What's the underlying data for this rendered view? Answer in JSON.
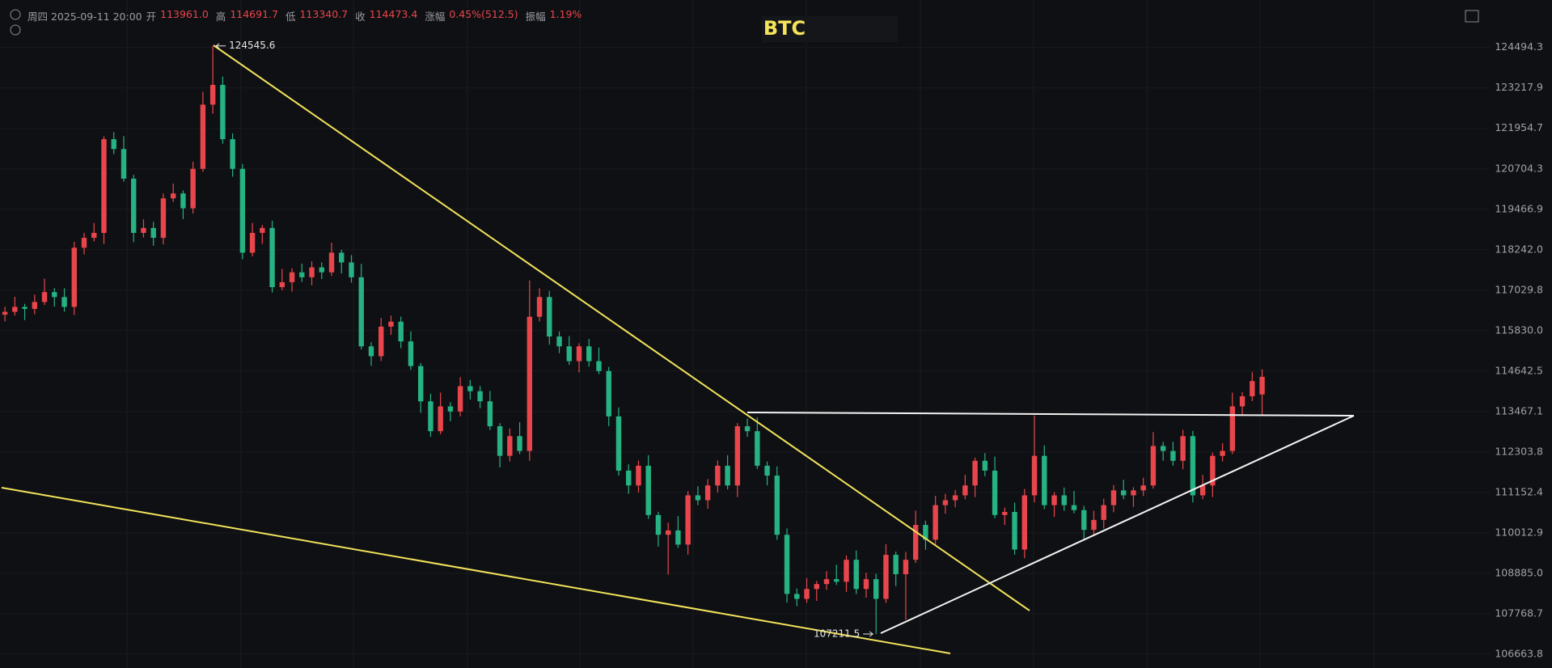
{
  "header": {
    "datetime": "周四 2025-09-11 20:00",
    "items": [
      {
        "label": "开",
        "value": "113961.0"
      },
      {
        "label": "高",
        "value": "114691.7"
      },
      {
        "label": "低",
        "value": "113340.7"
      },
      {
        "label": "收",
        "value": "114473.4"
      },
      {
        "label": "涨幅",
        "value": "0.45%(512.5)"
      },
      {
        "label": "振幅",
        "value": "1.19%"
      }
    ]
  },
  "chart_data": {
    "type": "candlestick",
    "title": "BTC",
    "log_scale": true,
    "grid": true,
    "up_color": "#e8464c",
    "down_color": "#26b283",
    "ylim": [
      106288,
      126010
    ],
    "yticks": [
      124494.3,
      123217.9,
      121954.7,
      120704.3,
      119466.9,
      {
        "value": 118242.0,
        "label": "118242.0"
      },
      117029.8,
      {
        "value": 115830.0,
        "label": "115830.0"
      },
      114642.5,
      113467.1,
      112303.8,
      111152.4,
      110012.9,
      {
        "value": 108885.0,
        "label": "108885.0"
      },
      107768.7,
      106663.8
    ],
    "open": [
      116300,
      116385,
      116532,
      116473,
      116678,
      116971,
      116825,
      116532,
      118302,
      118601,
      118750,
      121620,
      121315,
      120402,
      118750,
      118900,
      118601,
      119799,
      119950,
      119497,
      120704,
      122694,
      123314,
      121620,
      120704,
      118153,
      118750,
      118900,
      117119,
      117267,
      117563,
      117415,
      117711,
      117563,
      118153,
      117859,
      117415,
      115366,
      115076,
      115947,
      116094,
      115511,
      114788,
      113761,
      112899,
      113614,
      113467,
      114202,
      114055,
      113761,
      113041,
      112192,
      112757,
      112332,
      116240,
      116825,
      115656,
      115366,
      114932,
      115366,
      114932,
      114643,
      113325,
      111770,
      111349,
      111910,
      110513,
      109958,
      110080,
      109683,
      111069,
      110930,
      111349,
      111910,
      111349,
      113041,
      112899,
      111910,
      111629,
      109958,
      108313,
      108177,
      108450,
      108586,
      108722,
      108650,
      109260,
      108450,
      108722,
      108177,
      109398,
      108858,
      109260,
      110235,
      109820,
      110791,
      110930,
      111069,
      111349,
      112051,
      111770,
      110513,
      110600,
      109545,
      111069,
      112192,
      110791,
      111069,
      110791,
      110652,
      110096,
      110374,
      110791,
      111209,
      111069,
      111209,
      111349,
      112474,
      112332,
      112051,
      112757,
      111069,
      111349,
      112192,
      112332,
      113614,
      113908,
      113961.0
    ],
    "high": [
      116535,
      116832,
      116622,
      116898,
      117371,
      117091,
      117085,
      118482,
      118751,
      119050,
      121710,
      121840,
      121715,
      120522,
      119160,
      119080,
      119949,
      120250,
      120040,
      120924,
      123094,
      124545.6,
      123574,
      121800,
      120854,
      119050,
      118990,
      119120,
      117667,
      117683,
      117823,
      117891,
      117861,
      118453,
      118243,
      118079,
      117815,
      115486,
      116207,
      116274,
      116244,
      115811,
      114878,
      113981,
      114014,
      113734,
      114462,
      114382,
      114205,
      114061,
      113131,
      112977,
      113157,
      117320,
      117085,
      117005,
      115806,
      115666,
      115456,
      115586,
      115332,
      114763,
      113585,
      111950,
      112060,
      112210,
      110603,
      110300,
      110480,
      111189,
      111329,
      111529,
      112060,
      112210,
      113131,
      113261,
      113299,
      112030,
      111889,
      110138,
      108463,
      108750,
      108676,
      108942,
      109122,
      109380,
      109520,
      108902,
      108872,
      109698,
      109488,
      109480,
      110635,
      110355,
      111051,
      111110,
      111219,
      111649,
      112141,
      112271,
      112170,
      110720,
      110860,
      111249,
      113350,
      112492,
      111159,
      111289,
      111191,
      110772,
      110634,
      110971,
      111359,
      111509,
      111299,
      111569,
      112874,
      112594,
      112592,
      112937,
      112907,
      111649,
      112282,
      112552,
      114014,
      114028,
      114609,
      114691.7
    ],
    "low": [
      116100,
      116275,
      116143,
      116313,
      116588,
      116545,
      116392,
      116292,
      118102,
      118491,
      118420,
      121155,
      120312,
      118470,
      118610,
      118361,
      118401,
      119689,
      119167,
      119337,
      120614,
      122414,
      121480,
      120464,
      117953,
      118043,
      118420,
      116959,
      117029,
      116987,
      117275,
      117175,
      117363,
      117453,
      117529,
      117255,
      115276,
      114796,
      114936,
      115707,
      115311,
      114678,
      113431,
      112739,
      112809,
      113187,
      113327,
      113815,
      113561,
      112931,
      111862,
      112032,
      112242,
      112052,
      116100,
      115416,
      115166,
      114822,
      114602,
      114772,
      114553,
      113045,
      111630,
      111109,
      111149,
      110403,
      109628,
      108850,
      109593,
      109403,
      110790,
      110690,
      111149,
      111239,
      111019,
      112739,
      111820,
      111349,
      109818,
      108073,
      107977,
      108067,
      108120,
      108426,
      108560,
      108370,
      108310,
      108210,
      107211.5,
      108067,
      108528,
      107600,
      109170,
      109540,
      109680,
      110551,
      110730,
      110959,
      111019,
      111610,
      110423,
      110233,
      109405,
      109305,
      110869,
      110681,
      110461,
      110631,
      110562,
      109816,
      109956,
      110134,
      110591,
      110959,
      110739,
      111049,
      111259,
      112052,
      111911,
      111811,
      110869,
      110959,
      111019,
      112032,
      112242,
      113334,
      113768,
      113340.7
    ],
    "close": [
      116385,
      116532,
      116473,
      116678,
      116971,
      116825,
      116532,
      118302,
      118601,
      118750,
      121620,
      121315,
      120402,
      118750,
      118900,
      118601,
      119799,
      119950,
      119497,
      120704,
      122694,
      123314,
      121620,
      120704,
      118153,
      118750,
      118900,
      117119,
      117267,
      117563,
      117415,
      117711,
      117563,
      118153,
      117859,
      117415,
      115366,
      115076,
      115947,
      116094,
      115511,
      114788,
      113761,
      112899,
      113614,
      113467,
      114202,
      114055,
      113761,
      113041,
      112192,
      112757,
      112332,
      116240,
      116825,
      115656,
      115366,
      114932,
      115366,
      114932,
      114643,
      113325,
      111770,
      111349,
      111910,
      110513,
      109958,
      110080,
      109683,
      111069,
      110930,
      111349,
      111910,
      111349,
      113041,
      112899,
      111910,
      111629,
      109958,
      108313,
      108177,
      108450,
      108586,
      108722,
      108650,
      109260,
      108450,
      108722,
      108177,
      109398,
      108858,
      109260,
      110235,
      109820,
      110791,
      110930,
      111069,
      111349,
      112051,
      111770,
      110513,
      110600,
      109545,
      111069,
      112192,
      110791,
      111069,
      110791,
      110652,
      110096,
      110374,
      110791,
      111209,
      111069,
      111209,
      111349,
      112474,
      112332,
      112051,
      112757,
      111069,
      111349,
      112192,
      112332,
      113614,
      113908,
      114349,
      114473.4
    ]
  }
}
